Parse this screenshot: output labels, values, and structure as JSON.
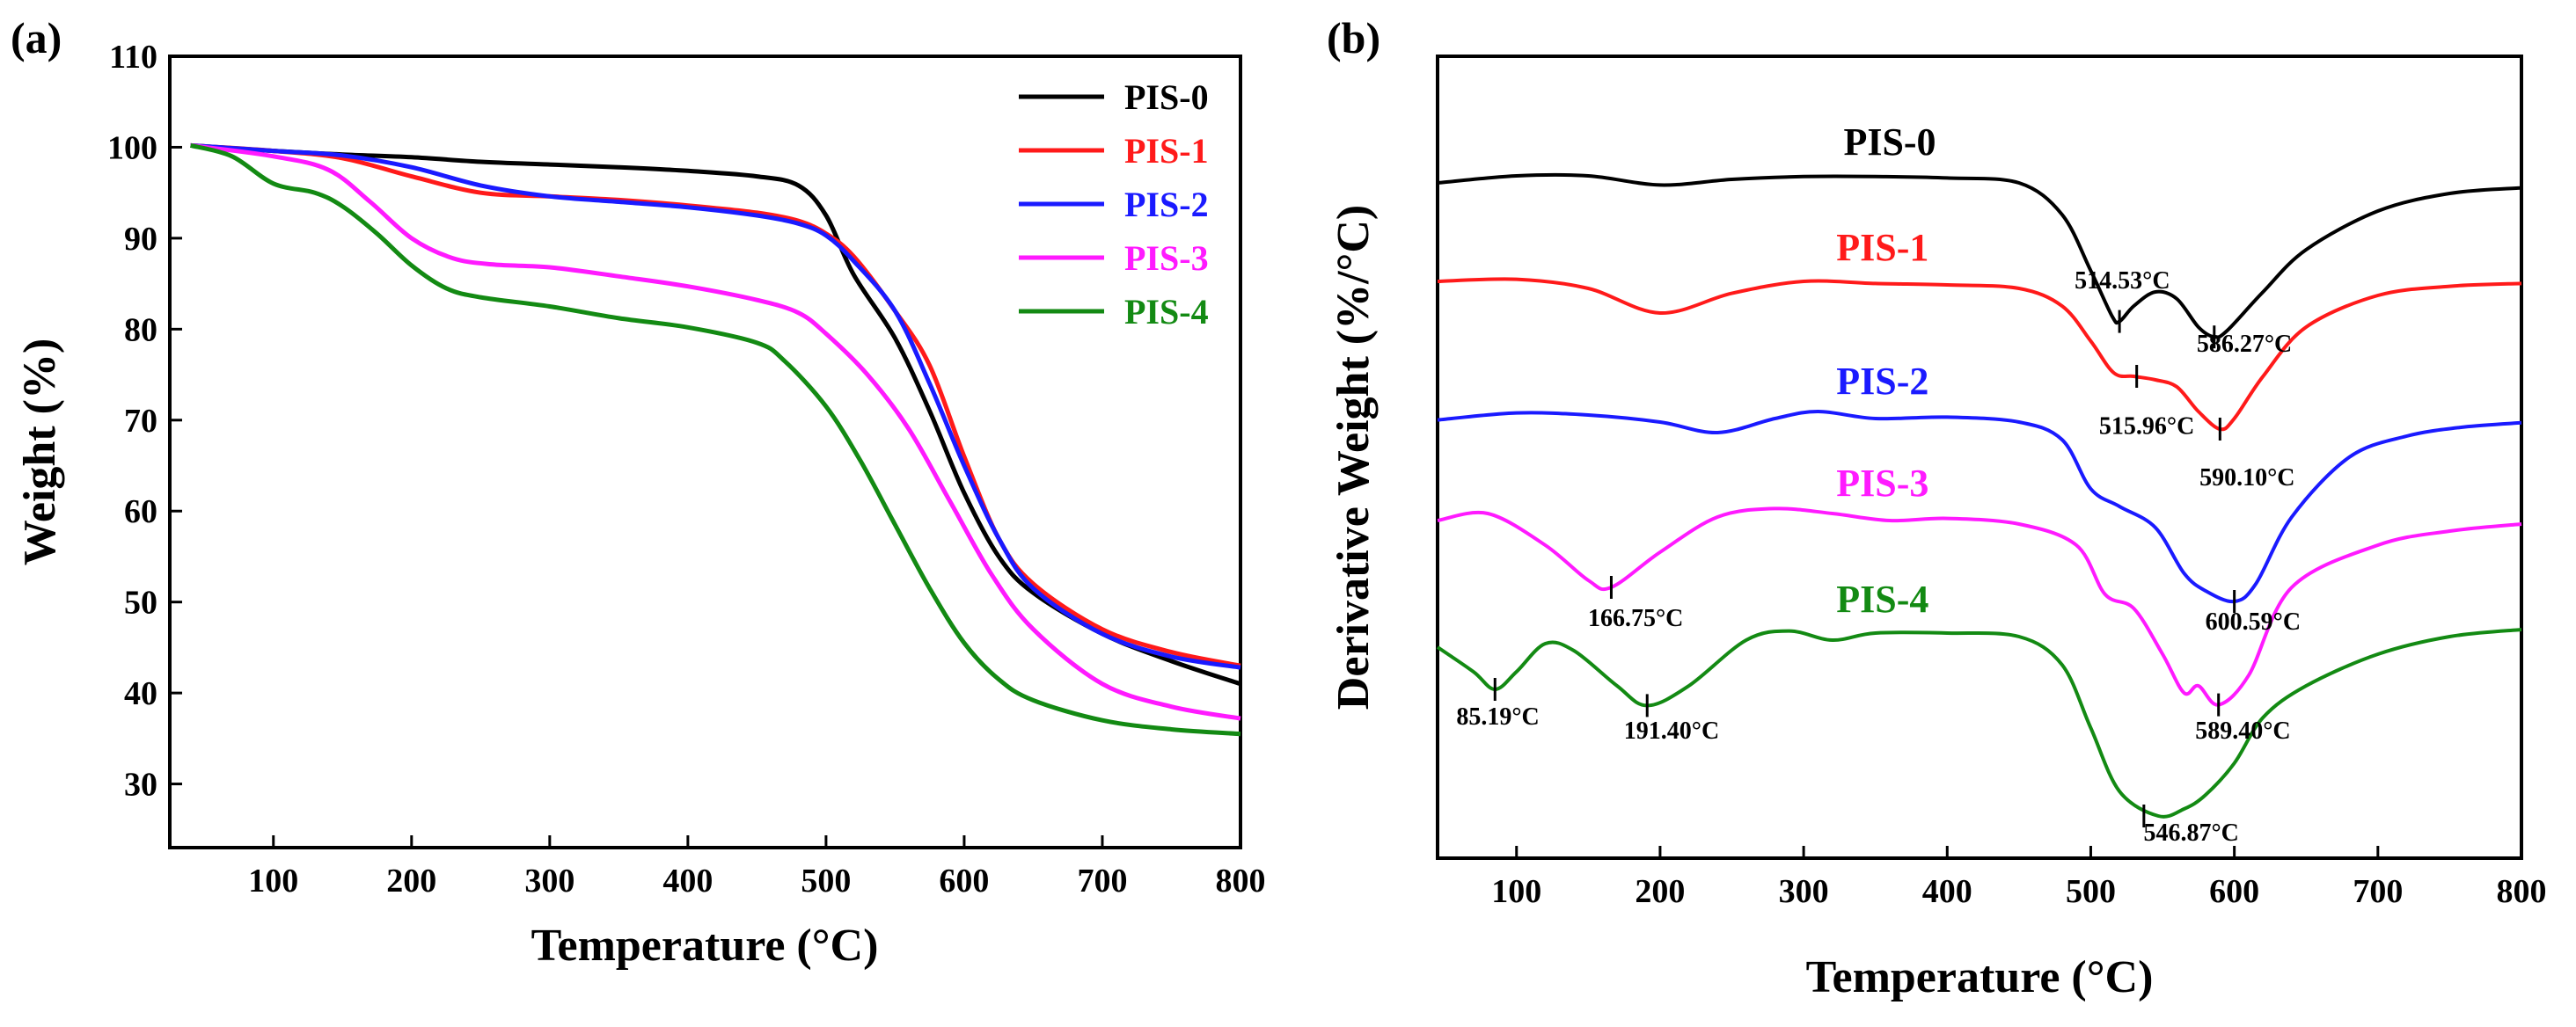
{
  "colors": {
    "PIS-0": "#000000",
    "PIS-1": "#ff1a1a",
    "PIS-2": "#1a1aff",
    "PIS-3": "#ff1aff",
    "PIS-4": "#138a13"
  },
  "chart_data": [
    {
      "panel": "(a)",
      "type": "line",
      "title": "",
      "xlabel": "Temperature (°C)",
      "ylabel": "Weight (%)",
      "xlim": [
        25,
        800
      ],
      "ylim": [
        23,
        110
      ],
      "xticks": [
        100,
        200,
        300,
        400,
        500,
        600,
        700,
        800
      ],
      "yticks": [
        30,
        40,
        50,
        60,
        70,
        80,
        90,
        100,
        110
      ],
      "legend_position": "top-right",
      "series": [
        {
          "name": "PIS-0",
          "x": [
            40,
            100,
            150,
            200,
            250,
            300,
            350,
            400,
            450,
            480,
            500,
            520,
            550,
            575,
            600,
            625,
            650,
            700,
            750,
            800
          ],
          "values": [
            100.2,
            99.6,
            99.2,
            98.9,
            98.4,
            98.1,
            97.8,
            97.4,
            96.8,
            95.8,
            92.5,
            86.0,
            79.0,
            71.0,
            62.0,
            55.0,
            51.0,
            46.5,
            43.5,
            41.0
          ]
        },
        {
          "name": "PIS-1",
          "x": [
            40,
            100,
            150,
            200,
            250,
            300,
            350,
            400,
            450,
            480,
            500,
            520,
            550,
            575,
            600,
            625,
            650,
            700,
            750,
            800
          ],
          "values": [
            100.2,
            99.6,
            98.8,
            96.8,
            95.0,
            94.6,
            94.2,
            93.6,
            92.8,
            91.9,
            90.5,
            88.0,
            82.0,
            76.0,
            66.0,
            57.0,
            52.0,
            47.0,
            44.5,
            43.0
          ]
        },
        {
          "name": "PIS-2",
          "x": [
            40,
            100,
            150,
            200,
            250,
            300,
            350,
            400,
            450,
            480,
            500,
            520,
            550,
            575,
            600,
            625,
            650,
            700,
            750,
            800
          ],
          "values": [
            100.2,
            99.6,
            99.1,
            97.8,
            95.8,
            94.6,
            94.0,
            93.4,
            92.5,
            91.6,
            90.3,
            87.5,
            82.0,
            74.0,
            65.0,
            57.0,
            51.5,
            46.5,
            44.0,
            42.8
          ]
        },
        {
          "name": "PIS-3",
          "x": [
            40,
            100,
            140,
            170,
            200,
            230,
            260,
            300,
            350,
            400,
            450,
            480,
            500,
            530,
            560,
            590,
            620,
            650,
            700,
            750,
            800
          ],
          "values": [
            100.2,
            99.0,
            97.5,
            94.0,
            90.0,
            87.8,
            87.1,
            86.8,
            85.8,
            84.7,
            83.2,
            81.8,
            79.5,
            75.0,
            69.0,
            61.0,
            53.0,
            47.0,
            41.0,
            38.5,
            37.2
          ]
        },
        {
          "name": "PIS-4",
          "x": [
            40,
            70,
            100,
            130,
            150,
            175,
            200,
            225,
            250,
            300,
            350,
            400,
            450,
            470,
            500,
            525,
            550,
            575,
            600,
            625,
            650,
            700,
            750,
            800
          ],
          "values": [
            100.2,
            99.0,
            96.0,
            95.0,
            93.5,
            90.5,
            87.0,
            84.5,
            83.5,
            82.5,
            81.2,
            80.2,
            78.5,
            76.5,
            71.5,
            65.5,
            58.5,
            51.5,
            45.5,
            41.5,
            39.2,
            37.0,
            36.0,
            35.5
          ]
        }
      ]
    },
    {
      "panel": "(b)",
      "type": "line",
      "title": "",
      "xlabel": "Temperature (°C)",
      "ylabel": "Derivative Weight (%/°C)",
      "xlim": [
        45,
        800
      ],
      "ylim": [
        0,
        100
      ],
      "xticks": [
        100,
        200,
        300,
        400,
        500,
        600,
        700,
        800
      ],
      "yticks": [],
      "series": [
        {
          "name": "PIS-0",
          "x": [
            45,
            100,
            150,
            200,
            250,
            300,
            350,
            400,
            450,
            480,
            500,
            515,
            520,
            530,
            545,
            560,
            575,
            586,
            595,
            620,
            650,
            700,
            750,
            800
          ],
          "values": [
            91.5,
            92.5,
            92.5,
            91.2,
            92.0,
            92.4,
            92.4,
            92.2,
            91.5,
            87.0,
            79.0,
            72.5,
            71.8,
            74.0,
            76.0,
            75.0,
            71.0,
            69.6,
            70.5,
            76.0,
            82.0,
            87.5,
            90.0,
            90.8
          ]
        },
        {
          "name": "PIS-1",
          "x": [
            45,
            100,
            150,
            200,
            250,
            300,
            350,
            400,
            450,
            480,
            500,
            516,
            530,
            545,
            560,
            575,
            590,
            600,
            620,
            650,
            700,
            750,
            800
          ],
          "values": [
            77.5,
            77.8,
            76.5,
            73.0,
            75.8,
            77.5,
            77.2,
            77.0,
            76.5,
            74.0,
            69.0,
            64.5,
            64.0,
            63.5,
            62.5,
            59.0,
            56.5,
            58.0,
            64.0,
            71.0,
            75.5,
            76.8,
            77.2
          ]
        },
        {
          "name": "PIS-2",
          "x": [
            45,
            100,
            150,
            200,
            240,
            280,
            310,
            350,
            400,
            450,
            480,
            500,
            520,
            545,
            565,
            580,
            600,
            615,
            640,
            680,
            720,
            760,
            800
          ],
          "values": [
            57.8,
            58.8,
            58.5,
            57.5,
            56.0,
            58.0,
            59.0,
            58.0,
            58.2,
            57.5,
            55.0,
            48.0,
            45.5,
            42.5,
            36.0,
            33.5,
            32.0,
            34.5,
            44.0,
            52.5,
            55.5,
            56.8,
            57.4
          ]
        },
        {
          "name": "PIS-3",
          "x": [
            45,
            80,
            120,
            150,
            166,
            200,
            240,
            280,
            320,
            360,
            400,
            450,
            490,
            510,
            530,
            550,
            565,
            575,
            589,
            610,
            640,
            700,
            750,
            800
          ],
          "values": [
            43.5,
            44.5,
            40.0,
            35.0,
            34.0,
            39.0,
            44.0,
            45.2,
            44.5,
            43.5,
            43.8,
            43.0,
            40.0,
            33.0,
            31.0,
            24.5,
            19.0,
            20.0,
            17.3,
            21.5,
            34.0,
            40.0,
            42.0,
            43.0
          ]
        },
        {
          "name": "PIS-4",
          "x": [
            45,
            70,
            85,
            100,
            120,
            140,
            170,
            191,
            220,
            260,
            290,
            320,
            350,
            400,
            450,
            480,
            500,
            520,
            547,
            565,
            580,
            600,
            620,
            650,
            700,
            750,
            800
          ],
          "values": [
            25.5,
            22.0,
            19.5,
            22.0,
            26.0,
            25.0,
            20.0,
            17.2,
            20.0,
            26.5,
            27.8,
            26.5,
            27.5,
            27.5,
            27.0,
            23.0,
            14.0,
            5.0,
            1.5,
            2.5,
            4.5,
            9.0,
            15.5,
            20.0,
            24.5,
            27.0,
            28.0
          ]
        }
      ],
      "series_labels": [
        {
          "name": "PIS-0",
          "text": "PIS-0",
          "x": 360,
          "y": 95.5
        },
        {
          "name": "PIS-1",
          "text": "PIS-1",
          "x": 355,
          "y": 80.5
        },
        {
          "name": "PIS-2",
          "text": "PIS-2",
          "x": 355,
          "y": 61.5
        },
        {
          "name": "PIS-3",
          "text": "PIS-3",
          "x": 355,
          "y": 47.0
        },
        {
          "name": "PIS-4",
          "text": "PIS-4",
          "x": 355,
          "y": 30.5
        }
      ],
      "peak_labels": [
        {
          "series": "PIS-0",
          "text": "514.53°C",
          "x": 520,
          "y": 71.8,
          "lx": 522,
          "ly": 76.5
        },
        {
          "series": "PIS-0",
          "text": "586.27°C",
          "x": 586,
          "y": 69.6,
          "lx": 607,
          "ly": 67.5
        },
        {
          "series": "PIS-1",
          "text": "515.96°C",
          "x": 532,
          "y": 64.0,
          "lx": 539,
          "ly": 55.8
        },
        {
          "series": "PIS-1",
          "text": "590.10°C",
          "x": 590,
          "y": 56.5,
          "lx": 609,
          "ly": 48.5
        },
        {
          "series": "PIS-3",
          "text": "166.75°C",
          "x": 166,
          "y": 34.0,
          "lx": 183,
          "ly": 28.5
        },
        {
          "series": "PIS-2",
          "text": "600.59°C",
          "x": 600,
          "y": 32.0,
          "lx": 613,
          "ly": 28.0
        },
        {
          "series": "PIS-4",
          "text": "85.19°C",
          "x": 85,
          "y": 19.5,
          "lx": 87,
          "ly": 14.5
        },
        {
          "series": "PIS-4",
          "text": "191.40°C",
          "x": 191,
          "y": 17.2,
          "lx": 208,
          "ly": 12.5
        },
        {
          "series": "PIS-3",
          "text": "589.40°C",
          "x": 589,
          "y": 17.3,
          "lx": 606,
          "ly": 12.5
        },
        {
          "series": "PIS-4",
          "text": "546.87°C",
          "x": 537,
          "y": 1.5,
          "lx": 570,
          "ly": -2.0
        }
      ]
    }
  ]
}
